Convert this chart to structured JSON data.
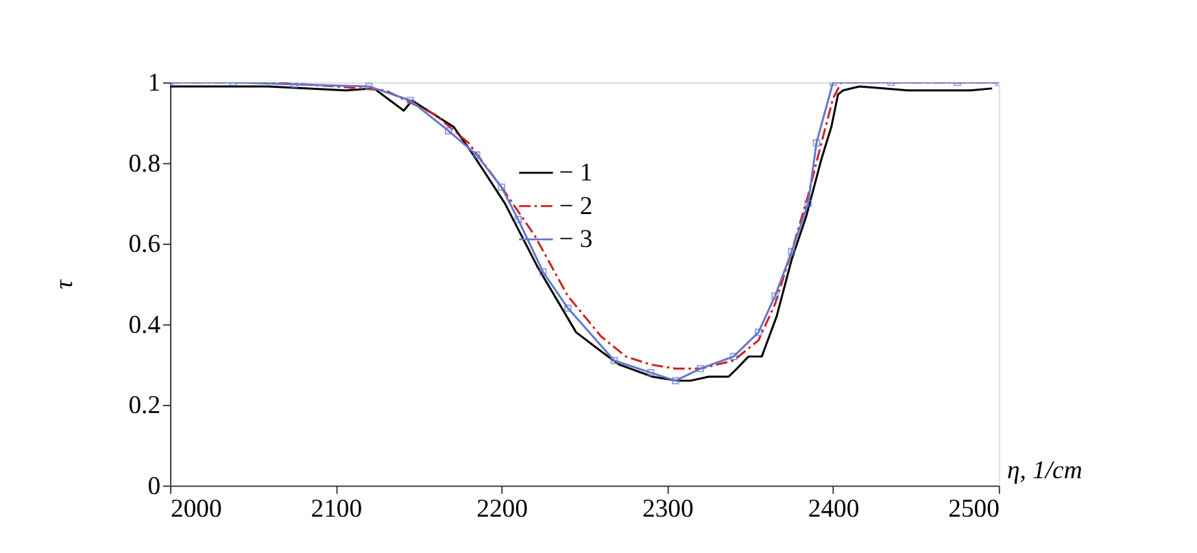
{
  "chart_data": {
    "type": "line",
    "xlabel": "η, 1/cm",
    "ylabel": "τ",
    "xlim": [
      2000,
      2500
    ],
    "ylim": [
      0,
      1
    ],
    "xticks": [
      2000,
      2100,
      2200,
      2300,
      2400,
      2500
    ],
    "yticks": [
      0,
      0.2,
      0.4,
      0.6,
      0.8,
      1
    ],
    "grid": false,
    "legend": "top",
    "series": [
      {
        "name": "− 1",
        "color": "#000000",
        "line_style": "solid",
        "marker": "none",
        "x": [
          2000,
          2059,
          2106,
          2123,
          2141,
          2146,
          2171,
          2183,
          2202,
          2222,
          2245,
          2261,
          2271,
          2291,
          2306,
          2314,
          2325,
          2337,
          2342,
          2349,
          2357,
          2366,
          2375,
          2384,
          2393,
          2399,
          2403,
          2406,
          2416,
          2445,
          2483,
          2496
        ],
        "values": [
          0.99,
          0.99,
          0.98,
          0.985,
          0.93,
          0.955,
          0.89,
          0.82,
          0.7,
          0.54,
          0.38,
          0.33,
          0.3,
          0.27,
          0.26,
          0.26,
          0.27,
          0.27,
          0.29,
          0.32,
          0.32,
          0.42,
          0.56,
          0.67,
          0.81,
          0.89,
          0.97,
          0.98,
          0.99,
          0.98,
          0.98,
          0.985
        ]
      },
      {
        "name": "− 2",
        "color": "#cc2222",
        "line_style": "dashed",
        "marker": "none",
        "x": [
          2000,
          2060,
          2100,
          2130,
          2160,
          2180,
          2200,
          2220,
          2240,
          2260,
          2275,
          2290,
          2305,
          2320,
          2340,
          2355,
          2365,
          2375,
          2385,
          2393,
          2400,
          2405,
          2450,
          2500
        ],
        "values": [
          1.0,
          1.0,
          0.99,
          0.98,
          0.92,
          0.85,
          0.74,
          0.62,
          0.47,
          0.37,
          0.32,
          0.3,
          0.29,
          0.29,
          0.31,
          0.36,
          0.45,
          0.58,
          0.72,
          0.85,
          0.96,
          1.0,
          1.0,
          1.0
        ]
      },
      {
        "name": "− 3",
        "color": "#6677cc",
        "line_style": "solid",
        "marker": "square",
        "x": [
          2000,
          2038,
          2075,
          2120,
          2145,
          2168,
          2185,
          2200,
          2210,
          2225,
          2240,
          2268,
          2290,
          2305,
          2320,
          2340,
          2355,
          2365,
          2375,
          2385,
          2390,
          2400,
          2435,
          2475,
          2500
        ],
        "values": [
          1.0,
          1.0,
          0.995,
          0.99,
          0.955,
          0.88,
          0.82,
          0.74,
          0.66,
          0.53,
          0.44,
          0.31,
          0.28,
          0.26,
          0.29,
          0.32,
          0.38,
          0.47,
          0.58,
          0.7,
          0.85,
          1.0,
          1.0,
          1.0,
          1.0
        ]
      }
    ]
  }
}
